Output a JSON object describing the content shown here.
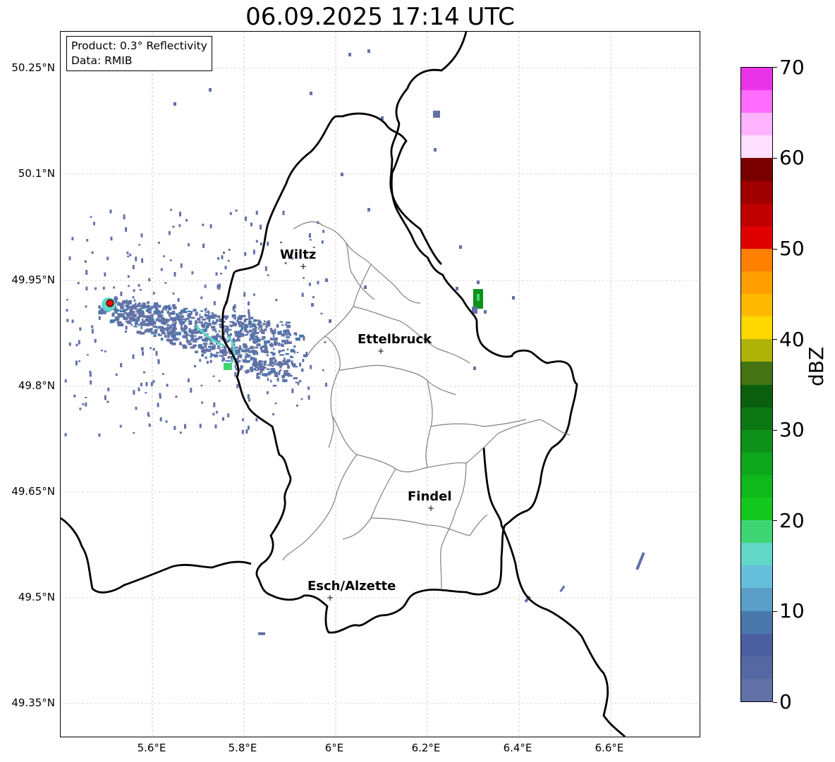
{
  "title": "06.09.2025 17:14 UTC",
  "info": {
    "product": "Product: 0.3° Reflectivity",
    "data": "Data: RMIB"
  },
  "latitude_labels": [
    "50.25°N",
    "50.1°N",
    "49.95°N",
    "49.8°N",
    "49.65°N",
    "49.5°N",
    "49.35°N"
  ],
  "longitude_labels": [
    "5.6°E",
    "5.8°E",
    "6°E",
    "6.2°E",
    "6.4°E",
    "6.6°E"
  ],
  "cities": [
    {
      "name": "Wiltz",
      "lon": 5.935,
      "lat": 49.967
    },
    {
      "name": "Ettelbruck",
      "lon": 6.103,
      "lat": 49.848
    },
    {
      "name": "Findel",
      "lon": 6.211,
      "lat": 49.625
    },
    {
      "name": "Esch/Alzette",
      "lon": 5.99,
      "lat": 49.497
    }
  ],
  "radar_site": {
    "lon": 5.505,
    "lat": 49.914,
    "color": "#ff0000"
  },
  "colorbar": {
    "label": "dBZ",
    "min": 0,
    "max": 70,
    "step": 2.5,
    "tick_labels": [
      "0",
      "10",
      "20",
      "30",
      "40",
      "50",
      "60",
      "70"
    ],
    "colors": [
      "#6272a6",
      "#5668a1",
      "#4b5fa0",
      "#4a78ad",
      "#5b9fc8",
      "#66c0dc",
      "#62d7c7",
      "#3ed672",
      "#15c81f",
      "#10b81d",
      "#0ea61a",
      "#0e911a",
      "#0b7813",
      "#0a5f0e",
      "#447413",
      "#afb308",
      "#ffd800",
      "#ffba00",
      "#ffa000",
      "#ff8000",
      "#e00000",
      "#c00000",
      "#a00000",
      "#7a0000",
      "#ffdfff",
      "#ffb4ff",
      "#ff6cff",
      "#ea34ea"
    ]
  },
  "colors": {
    "country_border": "#000000",
    "canton_border": "#808080",
    "grid": "#b0b0b0",
    "echo_weak": "#6272a6",
    "echo_medium": "#4a78ad",
    "echo_cyan": "#62d7c7",
    "echo_green": "#3ed672",
    "echo_dark_green": "#0e911a"
  }
}
